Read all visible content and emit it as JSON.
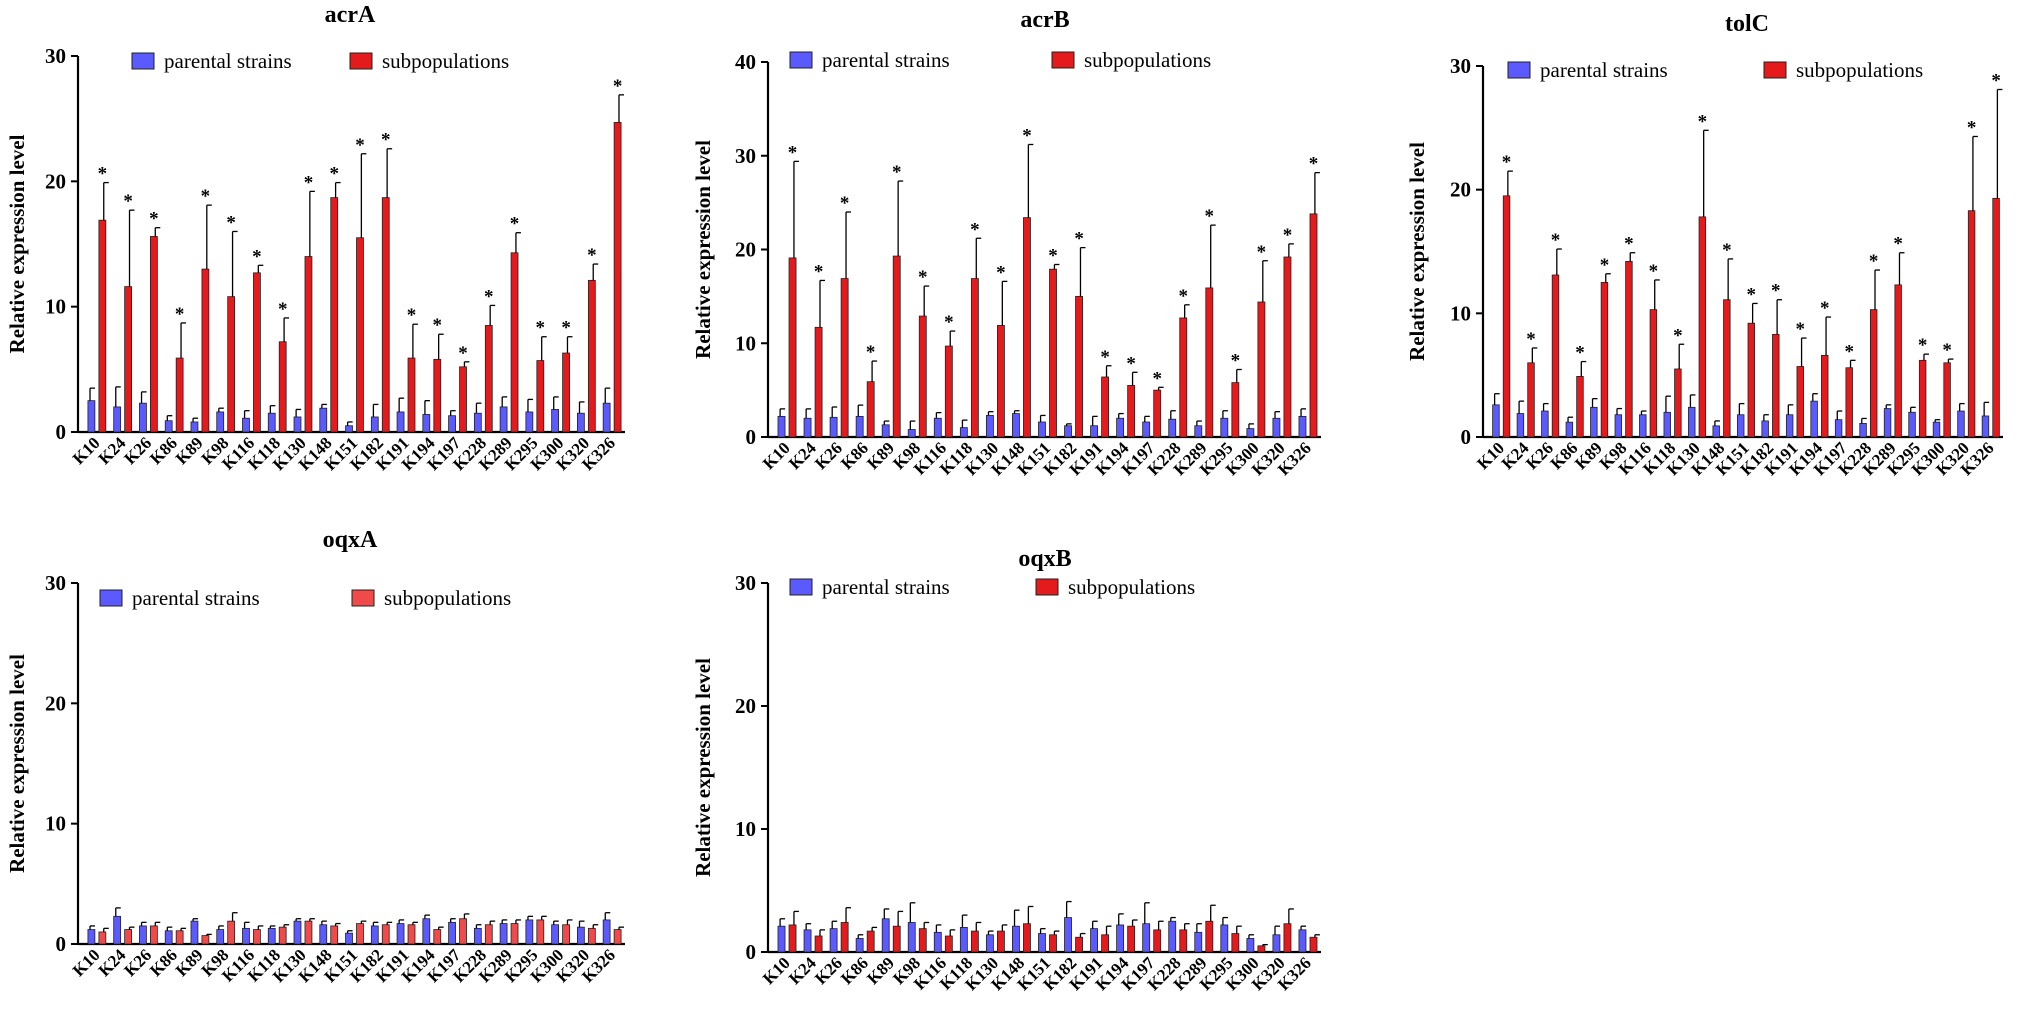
{
  "colors": {
    "parental": "#5a5aff",
    "subpop": "#e41a1c",
    "subpop_light": "#f04a4a",
    "axis": "#000000"
  },
  "chart_data": [
    {
      "type": "bar",
      "title": "acrA",
      "ylabel": "Relative expression level",
      "ylim": [
        0,
        30
      ],
      "yticks": [
        0,
        10,
        20,
        30
      ],
      "categories": [
        "K10",
        "K24",
        "K26",
        "K86",
        "K89",
        "K98",
        "K116",
        "K118",
        "K130",
        "K148",
        "K151",
        "K182",
        "K191",
        "K194",
        "K197",
        "K228",
        "K289",
        "K295",
        "K300",
        "K320",
        "K326"
      ],
      "legend": [
        "parental strains",
        "subpopulations"
      ],
      "series": [
        {
          "name": "parental strains",
          "values": [
            2.5,
            2.0,
            2.3,
            0.9,
            0.8,
            1.6,
            1.1,
            1.5,
            1.2,
            1.9,
            0.5,
            1.2,
            1.6,
            1.4,
            1.3,
            1.5,
            2.0,
            1.6,
            1.8,
            1.5,
            2.3
          ],
          "errors": [
            1.0,
            1.6,
            0.9,
            0.4,
            0.3,
            0.3,
            0.6,
            0.6,
            0.6,
            0.3,
            0.3,
            1.0,
            1.1,
            1.1,
            0.4,
            0.8,
            0.8,
            1.0,
            1.0,
            0.9,
            1.2
          ]
        },
        {
          "name": "subpopulations",
          "values": [
            16.9,
            11.6,
            15.6,
            5.9,
            13.0,
            10.8,
            12.7,
            7.2,
            14.0,
            18.7,
            15.5,
            18.7,
            5.9,
            5.8,
            5.2,
            8.5,
            14.3,
            5.7,
            6.3,
            12.1,
            24.7
          ],
          "errors": [
            3.0,
            6.1,
            0.7,
            2.8,
            5.1,
            5.2,
            0.6,
            1.9,
            5.2,
            1.2,
            6.7,
            3.9,
            2.7,
            2.0,
            0.4,
            1.6,
            1.6,
            1.9,
            1.3,
            1.3,
            2.2
          ]
        }
      ],
      "significant": [
        true,
        true,
        true,
        true,
        true,
        true,
        true,
        true,
        true,
        true,
        true,
        true,
        true,
        true,
        true,
        true,
        true,
        true,
        true,
        true,
        true
      ],
      "star_label": "*"
    },
    {
      "type": "bar",
      "title": "acrB",
      "ylabel": "Relative expression level",
      "ylim": [
        0,
        40
      ],
      "yticks": [
        0,
        10,
        20,
        30,
        40
      ],
      "categories": [
        "K10",
        "K24",
        "K26",
        "K86",
        "K89",
        "K98",
        "K116",
        "K118",
        "K130",
        "K148",
        "K151",
        "K182",
        "K191",
        "K194",
        "K197",
        "K228",
        "K289",
        "K295",
        "K300",
        "K320",
        "K326"
      ],
      "legend": [
        "parental strains",
        "subpopulations"
      ],
      "series": [
        {
          "name": "parental strains",
          "values": [
            2.2,
            2.0,
            2.1,
            2.2,
            1.3,
            0.8,
            2.0,
            1.0,
            2.3,
            2.5,
            1.6,
            1.2,
            1.2,
            2.0,
            1.6,
            1.9,
            1.2,
            2.0,
            0.9,
            2.0,
            2.2
          ],
          "errors": [
            0.8,
            1.0,
            1.1,
            1.2,
            0.4,
            0.9,
            0.6,
            0.8,
            0.4,
            0.3,
            0.7,
            0.2,
            1.0,
            0.5,
            0.6,
            0.9,
            0.5,
            0.8,
            0.5,
            0.7,
            0.8
          ]
        },
        {
          "name": "subpopulations",
          "values": [
            19.1,
            11.7,
            16.9,
            5.9,
            19.3,
            12.9,
            9.7,
            16.9,
            11.9,
            23.4,
            17.9,
            15.0,
            6.4,
            5.5,
            5.0,
            12.7,
            15.9,
            5.8,
            14.4,
            19.2,
            23.8
          ],
          "errors": [
            10.3,
            5.0,
            7.1,
            2.2,
            8.0,
            3.2,
            1.6,
            4.3,
            4.7,
            7.8,
            0.5,
            5.2,
            1.2,
            1.4,
            0.3,
            1.4,
            6.7,
            1.4,
            4.4,
            1.4,
            4.4
          ]
        }
      ],
      "significant": [
        true,
        true,
        true,
        true,
        true,
        true,
        true,
        true,
        true,
        true,
        true,
        true,
        true,
        true,
        true,
        true,
        true,
        true,
        true,
        true,
        true
      ],
      "star_label": "*"
    },
    {
      "type": "bar",
      "title": "tolC",
      "ylabel": "Relative expression level",
      "ylim": [
        0,
        30
      ],
      "yticks": [
        0,
        10,
        20,
        30
      ],
      "categories": [
        "K10",
        "K24",
        "K26",
        "K86",
        "K89",
        "K98",
        "K116",
        "K118",
        "K130",
        "K148",
        "K151",
        "K182",
        "K191",
        "K194",
        "K197",
        "K228",
        "K289",
        "K295",
        "K300",
        "K320",
        "K326"
      ],
      "legend": [
        "parental strains",
        "subpopulations"
      ],
      "series": [
        {
          "name": "parental strains",
          "values": [
            2.6,
            1.9,
            2.1,
            1.2,
            2.4,
            1.8,
            1.8,
            2.0,
            2.4,
            0.9,
            1.8,
            1.3,
            1.8,
            2.9,
            1.4,
            1.1,
            2.3,
            2.0,
            1.2,
            2.1,
            1.7
          ],
          "errors": [
            0.9,
            1.0,
            0.6,
            0.4,
            0.7,
            0.5,
            0.3,
            1.3,
            1.0,
            0.4,
            0.9,
            0.5,
            0.8,
            0.6,
            0.7,
            0.4,
            0.3,
            0.4,
            0.2,
            0.6,
            1.1
          ]
        },
        {
          "name": "subpopulations",
          "values": [
            19.5,
            6.0,
            13.1,
            4.9,
            12.5,
            14.2,
            10.3,
            5.5,
            17.8,
            11.1,
            9.2,
            8.3,
            5.7,
            6.6,
            5.6,
            10.3,
            12.3,
            6.2,
            6.0,
            18.3,
            19.3
          ],
          "errors": [
            2.0,
            1.2,
            2.1,
            1.2,
            0.7,
            0.7,
            2.4,
            2.0,
            7.0,
            3.3,
            1.6,
            2.8,
            2.3,
            3.1,
            0.6,
            3.2,
            2.6,
            0.5,
            0.3,
            6.0,
            8.8
          ]
        }
      ],
      "significant": [
        true,
        true,
        true,
        true,
        true,
        true,
        true,
        true,
        true,
        true,
        true,
        true,
        true,
        true,
        true,
        true,
        true,
        true,
        true,
        true,
        true
      ],
      "star_label": "*"
    },
    {
      "type": "bar",
      "title": "oqxA",
      "ylabel": "Relative expression level",
      "ylim": [
        0,
        30
      ],
      "yticks": [
        0,
        10,
        20,
        30
      ],
      "categories": [
        "K10",
        "K24",
        "K26",
        "K86",
        "K89",
        "K98",
        "K116",
        "K118",
        "K130",
        "K148",
        "K151",
        "K182",
        "K191",
        "K194",
        "K197",
        "K228",
        "K289",
        "K295",
        "K300",
        "K320",
        "K326"
      ],
      "legend": [
        "parental strains",
        "subpopulations"
      ],
      "series": [
        {
          "name": "parental strains",
          "values": [
            1.2,
            2.3,
            1.5,
            1.1,
            1.9,
            1.2,
            1.3,
            1.3,
            1.9,
            1.6,
            0.9,
            1.5,
            1.7,
            2.1,
            1.8,
            1.3,
            1.7,
            2.0,
            1.6,
            1.4,
            2.0
          ],
          "errors": [
            0.3,
            0.7,
            0.3,
            0.3,
            0.2,
            0.3,
            0.5,
            0.2,
            0.2,
            0.3,
            0.2,
            0.3,
            0.3,
            0.3,
            0.3,
            0.3,
            0.3,
            0.3,
            0.3,
            0.5,
            0.6
          ]
        },
        {
          "name": "subpopulations",
          "values": [
            1.0,
            1.2,
            1.5,
            1.1,
            0.7,
            1.9,
            1.2,
            1.4,
            1.9,
            1.5,
            1.7,
            1.6,
            1.6,
            1.2,
            2.1,
            1.6,
            1.7,
            2.0,
            1.6,
            1.3,
            1.2
          ],
          "errors": [
            0.3,
            0.2,
            0.3,
            0.2,
            0.1,
            0.7,
            0.3,
            0.2,
            0.2,
            0.2,
            0.2,
            0.2,
            0.2,
            0.2,
            0.4,
            0.3,
            0.3,
            0.3,
            0.4,
            0.3,
            0.2
          ]
        }
      ],
      "significant": [
        false,
        false,
        false,
        false,
        false,
        false,
        false,
        false,
        false,
        false,
        false,
        false,
        false,
        false,
        false,
        false,
        false,
        false,
        false,
        false,
        false
      ],
      "star_label": "*"
    },
    {
      "type": "bar",
      "title": "oqxB",
      "ylabel": "Relative expression level",
      "ylim": [
        0,
        30
      ],
      "yticks": [
        0,
        10,
        20,
        30
      ],
      "categories": [
        "K10",
        "K24",
        "K26",
        "K86",
        "K89",
        "K98",
        "K116",
        "K118",
        "K130",
        "K148",
        "K151",
        "K182",
        "K191",
        "K194",
        "K197",
        "K228",
        "K289",
        "K295",
        "K300",
        "K320",
        "K326"
      ],
      "legend": [
        "parental strains",
        "subpopulations"
      ],
      "series": [
        {
          "name": "parental strains",
          "values": [
            2.1,
            1.8,
            1.9,
            1.1,
            2.7,
            2.4,
            1.6,
            2.0,
            1.4,
            2.1,
            1.5,
            2.8,
            1.9,
            2.2,
            2.3,
            2.5,
            1.6,
            2.2,
            1.1,
            1.4,
            1.8
          ],
          "errors": [
            0.6,
            0.5,
            0.6,
            0.3,
            0.8,
            1.6,
            0.6,
            1.0,
            0.3,
            1.3,
            0.4,
            1.3,
            0.6,
            0.9,
            1.7,
            0.3,
            0.7,
            0.6,
            0.3,
            0.7,
            0.3
          ]
        },
        {
          "name": "subpopulations",
          "values": [
            2.2,
            1.3,
            2.4,
            1.7,
            2.1,
            1.9,
            1.3,
            1.7,
            1.7,
            2.3,
            1.4,
            1.2,
            1.4,
            2.1,
            1.8,
            1.8,
            2.5,
            1.5,
            0.5,
            2.3,
            1.2
          ],
          "errors": [
            1.1,
            0.5,
            1.2,
            0.3,
            1.2,
            0.5,
            0.5,
            0.7,
            0.5,
            1.4,
            0.3,
            0.3,
            0.7,
            0.5,
            0.7,
            0.5,
            1.3,
            0.6,
            0.1,
            1.2,
            0.2
          ]
        }
      ],
      "significant": [
        false,
        false,
        false,
        false,
        false,
        false,
        false,
        false,
        false,
        false,
        false,
        false,
        false,
        false,
        false,
        false,
        false,
        false,
        false,
        false,
        false
      ],
      "star_label": "*"
    }
  ]
}
